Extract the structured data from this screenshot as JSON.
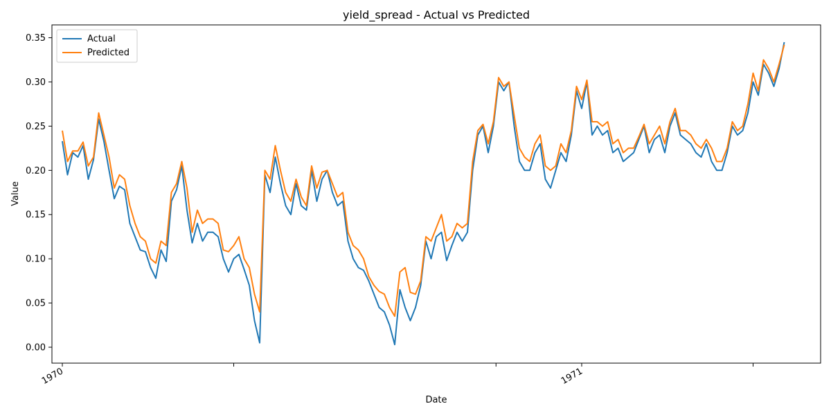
{
  "chart_data": {
    "type": "line",
    "title": "yield_spread - Actual vs Predicted",
    "xlabel": "Date",
    "ylabel": "Value",
    "ylim": [
      -0.018,
      0.3645
    ],
    "yticks": [
      "0.00",
      "0.05",
      "0.10",
      "0.15",
      "0.20",
      "0.25",
      "0.30",
      "0.35"
    ],
    "ytick_values": [
      0.0,
      0.05,
      0.1,
      0.15,
      0.2,
      0.25,
      0.3,
      0.35
    ],
    "x_range": [
      -0.02,
      1.46
    ],
    "xticks": [
      {
        "value": 0.0,
        "label": "1970"
      },
      {
        "value": 0.33,
        "label": ""
      },
      {
        "value": 0.835,
        "label": ""
      },
      {
        "value": 1.0,
        "label": "1971"
      },
      {
        "value": 1.33,
        "label": ""
      }
    ],
    "grid": false,
    "legend_position": "top-left",
    "series": [
      {
        "name": "Actual",
        "color": "#1f77b4",
        "x": [
          0.0,
          0.01,
          0.02,
          0.03,
          0.04,
          0.05,
          0.06,
          0.07,
          0.08,
          0.09,
          0.1,
          0.11,
          0.12,
          0.13,
          0.14,
          0.15,
          0.16,
          0.17,
          0.18,
          0.19,
          0.2,
          0.21,
          0.22,
          0.23,
          0.24,
          0.25,
          0.26,
          0.27,
          0.28,
          0.29,
          0.3,
          0.31,
          0.32,
          0.33,
          0.34,
          0.35,
          0.36,
          0.37,
          0.38,
          0.39,
          0.4,
          0.41,
          0.42,
          0.43,
          0.44,
          0.45,
          0.46,
          0.47,
          0.48,
          0.49,
          0.5,
          0.51,
          0.52,
          0.53,
          0.54,
          0.55,
          0.56,
          0.57,
          0.58,
          0.59,
          0.6,
          0.61,
          0.62,
          0.63,
          0.64,
          0.65,
          0.66,
          0.67,
          0.68,
          0.69,
          0.7,
          0.71,
          0.72,
          0.73,
          0.74,
          0.75,
          0.76,
          0.77,
          0.78,
          0.79,
          0.8,
          0.81,
          0.82,
          0.83,
          0.84,
          0.85,
          0.86,
          0.87,
          0.88,
          0.89,
          0.9,
          0.91,
          0.92,
          0.93,
          0.94,
          0.95,
          0.96,
          0.97,
          0.98,
          0.99,
          1.0,
          1.01,
          1.02,
          1.03,
          1.04,
          1.05,
          1.06,
          1.07,
          1.08,
          1.09,
          1.1,
          1.11,
          1.12,
          1.13,
          1.14,
          1.15,
          1.16,
          1.17,
          1.18,
          1.19,
          1.2,
          1.21,
          1.22,
          1.23,
          1.24,
          1.25,
          1.26,
          1.27,
          1.28,
          1.29,
          1.3,
          1.31,
          1.32,
          1.33,
          1.34,
          1.35,
          1.36,
          1.37,
          1.38,
          1.39
        ],
        "values": [
          0.233,
          0.195,
          0.22,
          0.215,
          0.228,
          0.19,
          0.212,
          0.258,
          0.233,
          0.2,
          0.168,
          0.182,
          0.178,
          0.14,
          0.125,
          0.11,
          0.108,
          0.09,
          0.078,
          0.11,
          0.097,
          0.165,
          0.178,
          0.205,
          0.155,
          0.118,
          0.14,
          0.12,
          0.13,
          0.13,
          0.125,
          0.1,
          0.085,
          0.1,
          0.105,
          0.088,
          0.07,
          0.03,
          0.005,
          0.195,
          0.175,
          0.215,
          0.185,
          0.16,
          0.15,
          0.185,
          0.16,
          0.155,
          0.2,
          0.165,
          0.19,
          0.2,
          0.175,
          0.16,
          0.165,
          0.12,
          0.1,
          0.09,
          0.087,
          0.075,
          0.06,
          0.045,
          0.04,
          0.025,
          0.003,
          0.065,
          0.045,
          0.03,
          0.045,
          0.07,
          0.12,
          0.1,
          0.125,
          0.13,
          0.098,
          0.115,
          0.13,
          0.12,
          0.13,
          0.2,
          0.24,
          0.25,
          0.22,
          0.25,
          0.3,
          0.29,
          0.3,
          0.25,
          0.21,
          0.2,
          0.2,
          0.22,
          0.23,
          0.19,
          0.18,
          0.2,
          0.22,
          0.21,
          0.24,
          0.29,
          0.27,
          0.3,
          0.24,
          0.25,
          0.24,
          0.245,
          0.22,
          0.225,
          0.21,
          0.215,
          0.22,
          0.235,
          0.25,
          0.22,
          0.235,
          0.24,
          0.22,
          0.25,
          0.265,
          0.24,
          0.235,
          0.23,
          0.22,
          0.215,
          0.23,
          0.21,
          0.2,
          0.2,
          0.22,
          0.25,
          0.24,
          0.245,
          0.265,
          0.3,
          0.285,
          0.32,
          0.31,
          0.295,
          0.315,
          0.345
        ]
      },
      {
        "name": "Predicted",
        "color": "#ff7f0e",
        "x": [
          0.0,
          0.01,
          0.02,
          0.03,
          0.04,
          0.05,
          0.06,
          0.07,
          0.08,
          0.09,
          0.1,
          0.11,
          0.12,
          0.13,
          0.14,
          0.15,
          0.16,
          0.17,
          0.18,
          0.19,
          0.2,
          0.21,
          0.22,
          0.23,
          0.24,
          0.25,
          0.26,
          0.27,
          0.28,
          0.29,
          0.3,
          0.31,
          0.32,
          0.33,
          0.34,
          0.35,
          0.36,
          0.37,
          0.38,
          0.39,
          0.4,
          0.41,
          0.42,
          0.43,
          0.44,
          0.45,
          0.46,
          0.47,
          0.48,
          0.49,
          0.5,
          0.51,
          0.52,
          0.53,
          0.54,
          0.55,
          0.56,
          0.57,
          0.58,
          0.59,
          0.6,
          0.61,
          0.62,
          0.63,
          0.64,
          0.65,
          0.66,
          0.67,
          0.68,
          0.69,
          0.7,
          0.71,
          0.72,
          0.73,
          0.74,
          0.75,
          0.76,
          0.77,
          0.78,
          0.79,
          0.8,
          0.81,
          0.82,
          0.83,
          0.84,
          0.85,
          0.86,
          0.87,
          0.88,
          0.89,
          0.9,
          0.91,
          0.92,
          0.93,
          0.94,
          0.95,
          0.96,
          0.97,
          0.98,
          0.99,
          1.0,
          1.01,
          1.02,
          1.03,
          1.04,
          1.05,
          1.06,
          1.07,
          1.08,
          1.09,
          1.1,
          1.11,
          1.12,
          1.13,
          1.14,
          1.15,
          1.16,
          1.17,
          1.18,
          1.19,
          1.2,
          1.21,
          1.22,
          1.23,
          1.24,
          1.25,
          1.26,
          1.27,
          1.28,
          1.29,
          1.3,
          1.31,
          1.32,
          1.33,
          1.34,
          1.35,
          1.36,
          1.37,
          1.38,
          1.39
        ],
        "values": [
          0.245,
          0.21,
          0.222,
          0.222,
          0.232,
          0.205,
          0.215,
          0.265,
          0.24,
          0.215,
          0.18,
          0.195,
          0.19,
          0.16,
          0.14,
          0.125,
          0.12,
          0.1,
          0.095,
          0.12,
          0.115,
          0.175,
          0.185,
          0.21,
          0.18,
          0.13,
          0.155,
          0.14,
          0.145,
          0.145,
          0.14,
          0.11,
          0.108,
          0.115,
          0.125,
          0.1,
          0.09,
          0.06,
          0.04,
          0.2,
          0.19,
          0.228,
          0.2,
          0.175,
          0.165,
          0.19,
          0.17,
          0.16,
          0.205,
          0.18,
          0.198,
          0.2,
          0.185,
          0.17,
          0.175,
          0.13,
          0.115,
          0.11,
          0.1,
          0.08,
          0.07,
          0.063,
          0.06,
          0.045,
          0.035,
          0.085,
          0.09,
          0.062,
          0.06,
          0.075,
          0.125,
          0.12,
          0.135,
          0.15,
          0.12,
          0.125,
          0.14,
          0.135,
          0.14,
          0.21,
          0.245,
          0.252,
          0.23,
          0.255,
          0.305,
          0.295,
          0.3,
          0.262,
          0.225,
          0.215,
          0.21,
          0.23,
          0.24,
          0.205,
          0.2,
          0.205,
          0.23,
          0.22,
          0.245,
          0.295,
          0.28,
          0.302,
          0.255,
          0.255,
          0.25,
          0.255,
          0.23,
          0.235,
          0.22,
          0.225,
          0.225,
          0.238,
          0.252,
          0.23,
          0.24,
          0.25,
          0.23,
          0.255,
          0.27,
          0.245,
          0.245,
          0.24,
          0.23,
          0.225,
          0.235,
          0.225,
          0.21,
          0.21,
          0.225,
          0.255,
          0.245,
          0.25,
          0.275,
          0.31,
          0.29,
          0.325,
          0.315,
          0.3,
          0.32,
          0.342
        ]
      }
    ]
  }
}
